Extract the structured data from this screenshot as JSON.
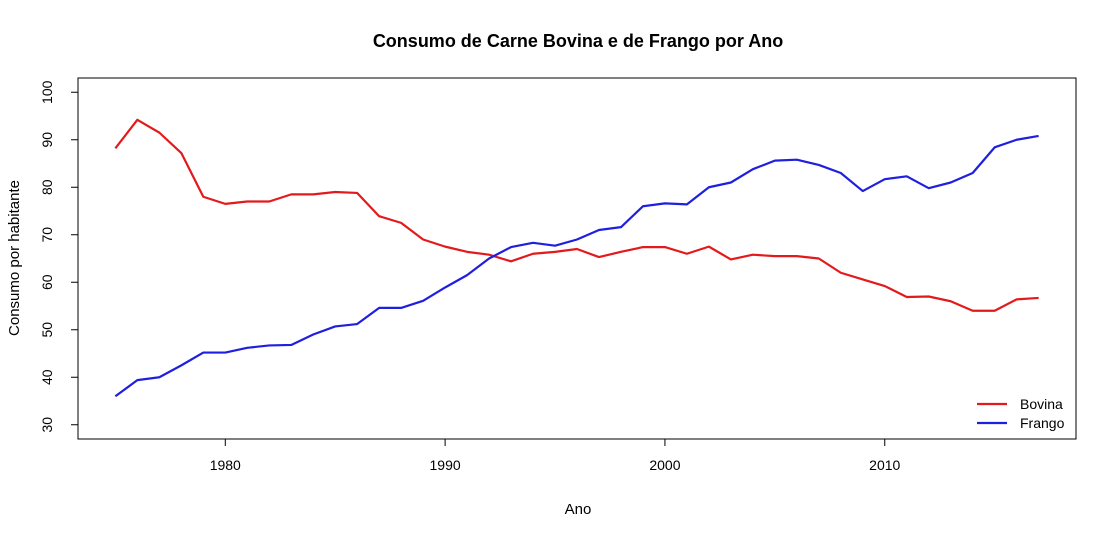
{
  "chart_data": {
    "type": "line",
    "title": "Consumo de Carne Bovina e de Frango por Ano",
    "xlabel": "Ano",
    "ylabel": "Consumo por habitante",
    "xlim": [
      1973.3,
      2018.7
    ],
    "ylim": [
      27,
      103
    ],
    "xticks": [
      1980,
      1990,
      2000,
      2010
    ],
    "yticks": [
      30,
      40,
      50,
      60,
      70,
      80,
      90,
      100
    ],
    "x": [
      1975,
      1976,
      1977,
      1978,
      1979,
      1980,
      1981,
      1982,
      1983,
      1984,
      1985,
      1986,
      1987,
      1988,
      1989,
      1990,
      1991,
      1992,
      1993,
      1994,
      1995,
      1996,
      1997,
      1998,
      1999,
      2000,
      2001,
      2002,
      2003,
      2004,
      2005,
      2006,
      2007,
      2008,
      2009,
      2010,
      2011,
      2012,
      2013,
      2014,
      2015,
      2016,
      2017
    ],
    "series": [
      {
        "name": "Bovina",
        "color": "#e31a1c",
        "values": [
          88.2,
          94.2,
          91.5,
          87.2,
          78.0,
          76.5,
          77.0,
          77.0,
          78.5,
          78.5,
          79.0,
          78.8,
          73.9,
          72.5,
          69.0,
          67.5,
          66.4,
          65.8,
          64.4,
          66.0,
          66.4,
          67.0,
          65.3,
          66.4,
          67.4,
          67.4,
          66.0,
          67.5,
          64.8,
          65.8,
          65.5,
          65.5,
          65.0,
          62.0,
          60.6,
          59.2,
          56.9,
          57.0,
          56.0,
          54.0,
          54.0,
          56.4,
          56.7
        ]
      },
      {
        "name": "Frango",
        "color": "#1f1fe0",
        "values": [
          36.0,
          39.4,
          40.0,
          42.5,
          45.2,
          45.2,
          46.2,
          46.7,
          46.8,
          49.0,
          50.7,
          51.2,
          54.6,
          54.6,
          56.1,
          58.9,
          61.5,
          65.0,
          67.4,
          68.3,
          67.7,
          69.0,
          71.0,
          71.6,
          76.0,
          76.6,
          76.4,
          80.0,
          81.0,
          83.8,
          85.6,
          85.8,
          84.7,
          83.0,
          79.2,
          81.7,
          82.3,
          79.8,
          81.0,
          83.0,
          88.4,
          90.0,
          90.8
        ]
      }
    ],
    "legend": {
      "position": "bottom-right",
      "entries": [
        "Bovina",
        "Frango"
      ]
    },
    "grid": false
  }
}
